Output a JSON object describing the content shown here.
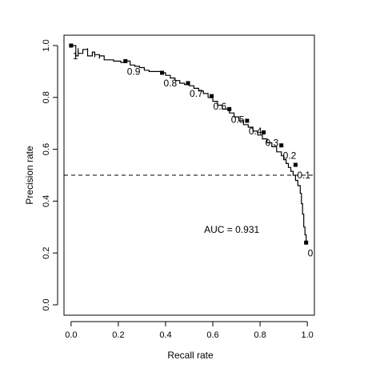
{
  "chart_data": {
    "type": "line",
    "xlabel": "Recall rate",
    "ylabel": "Precision rate",
    "xlim": [
      -0.03,
      1.03
    ],
    "ylim": [
      -0.04,
      1.04
    ],
    "x_ticks": [
      "0.0",
      "0.2",
      "0.4",
      "0.6",
      "0.8",
      "1.0"
    ],
    "y_ticks": [
      "0.0",
      "0.2",
      "0.4",
      "0.6",
      "0.8",
      "1.0"
    ],
    "grid": false,
    "legend": "none",
    "series": [
      {
        "x": [
          0.0,
          0.01,
          0.02,
          0.02,
          0.03,
          0.03,
          0.05,
          0.05,
          0.07,
          0.07,
          0.09,
          0.1,
          0.1,
          0.12,
          0.12,
          0.14,
          0.16,
          0.18,
          0.2,
          0.21,
          0.23,
          0.25,
          0.27,
          0.29,
          0.31,
          0.33,
          0.35,
          0.38,
          0.4,
          0.42,
          0.44,
          0.46,
          0.48,
          0.5,
          0.52,
          0.54,
          0.56,
          0.58,
          0.6,
          0.62,
          0.64,
          0.67,
          0.69,
          0.71,
          0.73,
          0.75,
          0.77,
          0.79,
          0.81,
          0.83,
          0.85,
          0.87,
          0.89,
          0.9,
          0.91,
          0.92,
          0.93,
          0.94,
          0.95,
          0.96,
          0.97,
          0.975,
          0.98,
          0.985,
          0.99,
          0.995
        ],
        "y": [
          1.0,
          1.0,
          0.985,
          0.96,
          0.99,
          0.97,
          0.97,
          0.985,
          0.99,
          0.96,
          0.975,
          0.955,
          0.965,
          0.95,
          0.96,
          0.945,
          0.945,
          0.94,
          0.94,
          0.935,
          0.94,
          0.925,
          0.92,
          0.915,
          0.905,
          0.9,
          0.9,
          0.895,
          0.885,
          0.875,
          0.865,
          0.855,
          0.85,
          0.845,
          0.835,
          0.825,
          0.815,
          0.8,
          0.785,
          0.77,
          0.755,
          0.74,
          0.725,
          0.71,
          0.695,
          0.685,
          0.67,
          0.655,
          0.64,
          0.625,
          0.61,
          0.59,
          0.575,
          0.56,
          0.545,
          0.53,
          0.515,
          0.5,
          0.48,
          0.46,
          0.43,
          0.39,
          0.35,
          0.3,
          0.27,
          0.24
        ]
      }
    ],
    "thresholds": [
      {
        "label": "1",
        "x": 0.0,
        "y": 1.0
      },
      {
        "label": "0.9",
        "x": 0.23,
        "y": 0.94
      },
      {
        "label": "0.8",
        "x": 0.385,
        "y": 0.895
      },
      {
        "label": "0.7",
        "x": 0.495,
        "y": 0.855
      },
      {
        "label": "0.6",
        "x": 0.595,
        "y": 0.805
      },
      {
        "label": "0.5",
        "x": 0.67,
        "y": 0.755
      },
      {
        "label": "0.4",
        "x": 0.745,
        "y": 0.71
      },
      {
        "label": "0.3",
        "x": 0.815,
        "y": 0.665
      },
      {
        "label": "0.2",
        "x": 0.89,
        "y": 0.615
      },
      {
        "label": "0.1",
        "x": 0.95,
        "y": 0.54
      },
      {
        "label": "0",
        "x": 0.995,
        "y": 0.24
      }
    ],
    "reference_line": {
      "y": 0.5,
      "style": "dashed"
    },
    "annotations": [
      {
        "text": "AUC = 0.931",
        "x": 0.68,
        "y": 0.29
      }
    ]
  }
}
